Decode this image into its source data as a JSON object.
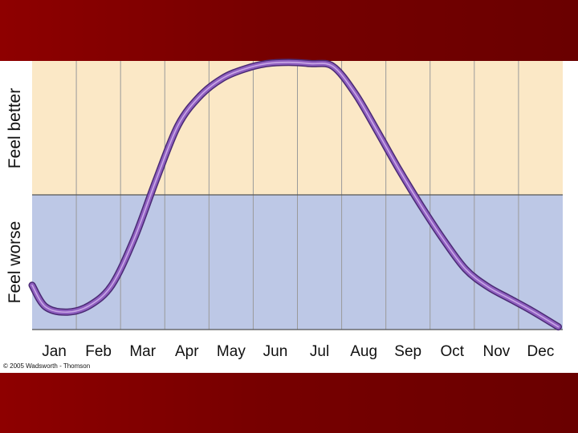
{
  "colors": {
    "band": "#7a0000",
    "better_bg": "#fbe8c6",
    "worse_bg": "#bdc8e6",
    "curve": "#8f5fc0",
    "curve_outline": "#4a2a74",
    "grid": "#9a9a9a"
  },
  "chart_data": {
    "type": "line",
    "categories": [
      "Jan",
      "Feb",
      "Mar",
      "Apr",
      "May",
      "Jun",
      "Jul",
      "Aug",
      "Sep",
      "Oct",
      "Nov",
      "Dec"
    ],
    "ylabel_top": "Feel better",
    "ylabel_bottom": "Feel worse",
    "ylim": [
      -1,
      1
    ],
    "grid": true,
    "series": [
      {
        "x": [
          0,
          0.3,
          0.8,
          1.3,
          1.8,
          2.3,
          2.8,
          3.3,
          3.8,
          4.3,
          4.8,
          5.3,
          5.8,
          6.3,
          6.8,
          7.3,
          7.8,
          8.3,
          8.8,
          9.3,
          9.8,
          10.3,
          10.8,
          11.3,
          11.9
        ],
        "y": [
          -0.67,
          -0.83,
          -0.87,
          -0.82,
          -0.67,
          -0.33,
          0.11,
          0.52,
          0.74,
          0.87,
          0.94,
          0.98,
          0.99,
          0.98,
          0.96,
          0.76,
          0.48,
          0.19,
          -0.08,
          -0.33,
          -0.55,
          -0.68,
          -0.77,
          -0.86,
          -0.98
        ]
      }
    ]
  },
  "copyright": "© 2005 Wadsworth - Thomson"
}
